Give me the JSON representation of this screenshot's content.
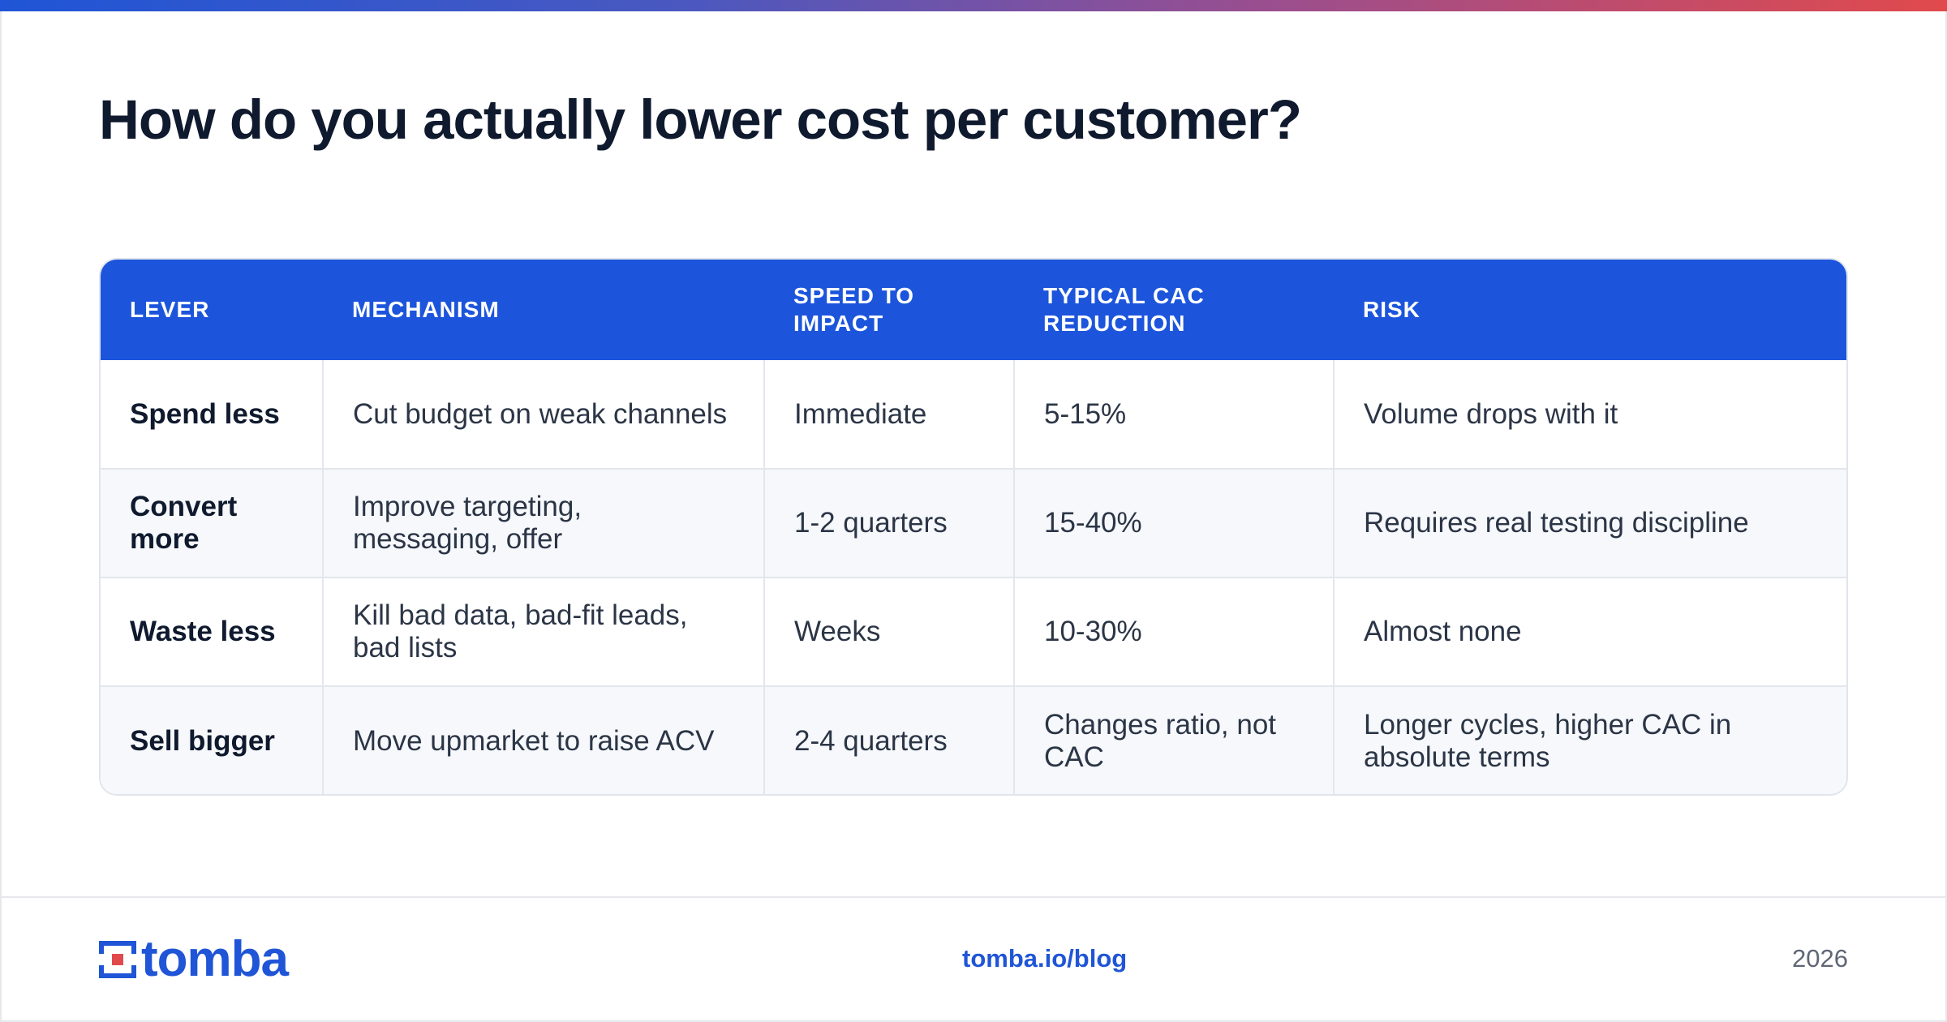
{
  "slide": {
    "title": "How do you actually lower cost per customer?"
  },
  "table": {
    "headers": {
      "lever": "LEVER",
      "mechanism": "MECHANISM",
      "speed": "SPEED TO IMPACT",
      "reduction": "TYPICAL CAC REDUCTION",
      "risk": "RISK"
    },
    "rows": [
      {
        "lever": "Spend less",
        "mechanism": "Cut budget on weak channels",
        "speed": "Immediate",
        "reduction": "5-15%",
        "risk": "Volume drops with it"
      },
      {
        "lever": "Convert more",
        "mechanism": "Improve targeting, messaging, offer",
        "speed": "1-2 quarters",
        "reduction": "15-40%",
        "risk": "Requires real testing discipline"
      },
      {
        "lever": "Waste less",
        "mechanism": "Kill bad data, bad-fit leads, bad lists",
        "speed": "Weeks",
        "reduction": "10-30%",
        "risk": "Almost none"
      },
      {
        "lever": "Sell bigger",
        "mechanism": "Move upmarket to raise ACV",
        "speed": "2-4 quarters",
        "reduction": "Changes ratio, not CAC",
        "risk": "Longer cycles, higher CAC in absolute terms"
      }
    ]
  },
  "footer": {
    "logo_text": "tomba",
    "link": "tomba.io/blog",
    "year": "2026"
  },
  "colors": {
    "accent_blue": "#1c55dc",
    "brand_red": "#e14a4c",
    "title": "#0f1a2e"
  },
  "icons": {
    "logo": "tomba-logo-icon"
  }
}
